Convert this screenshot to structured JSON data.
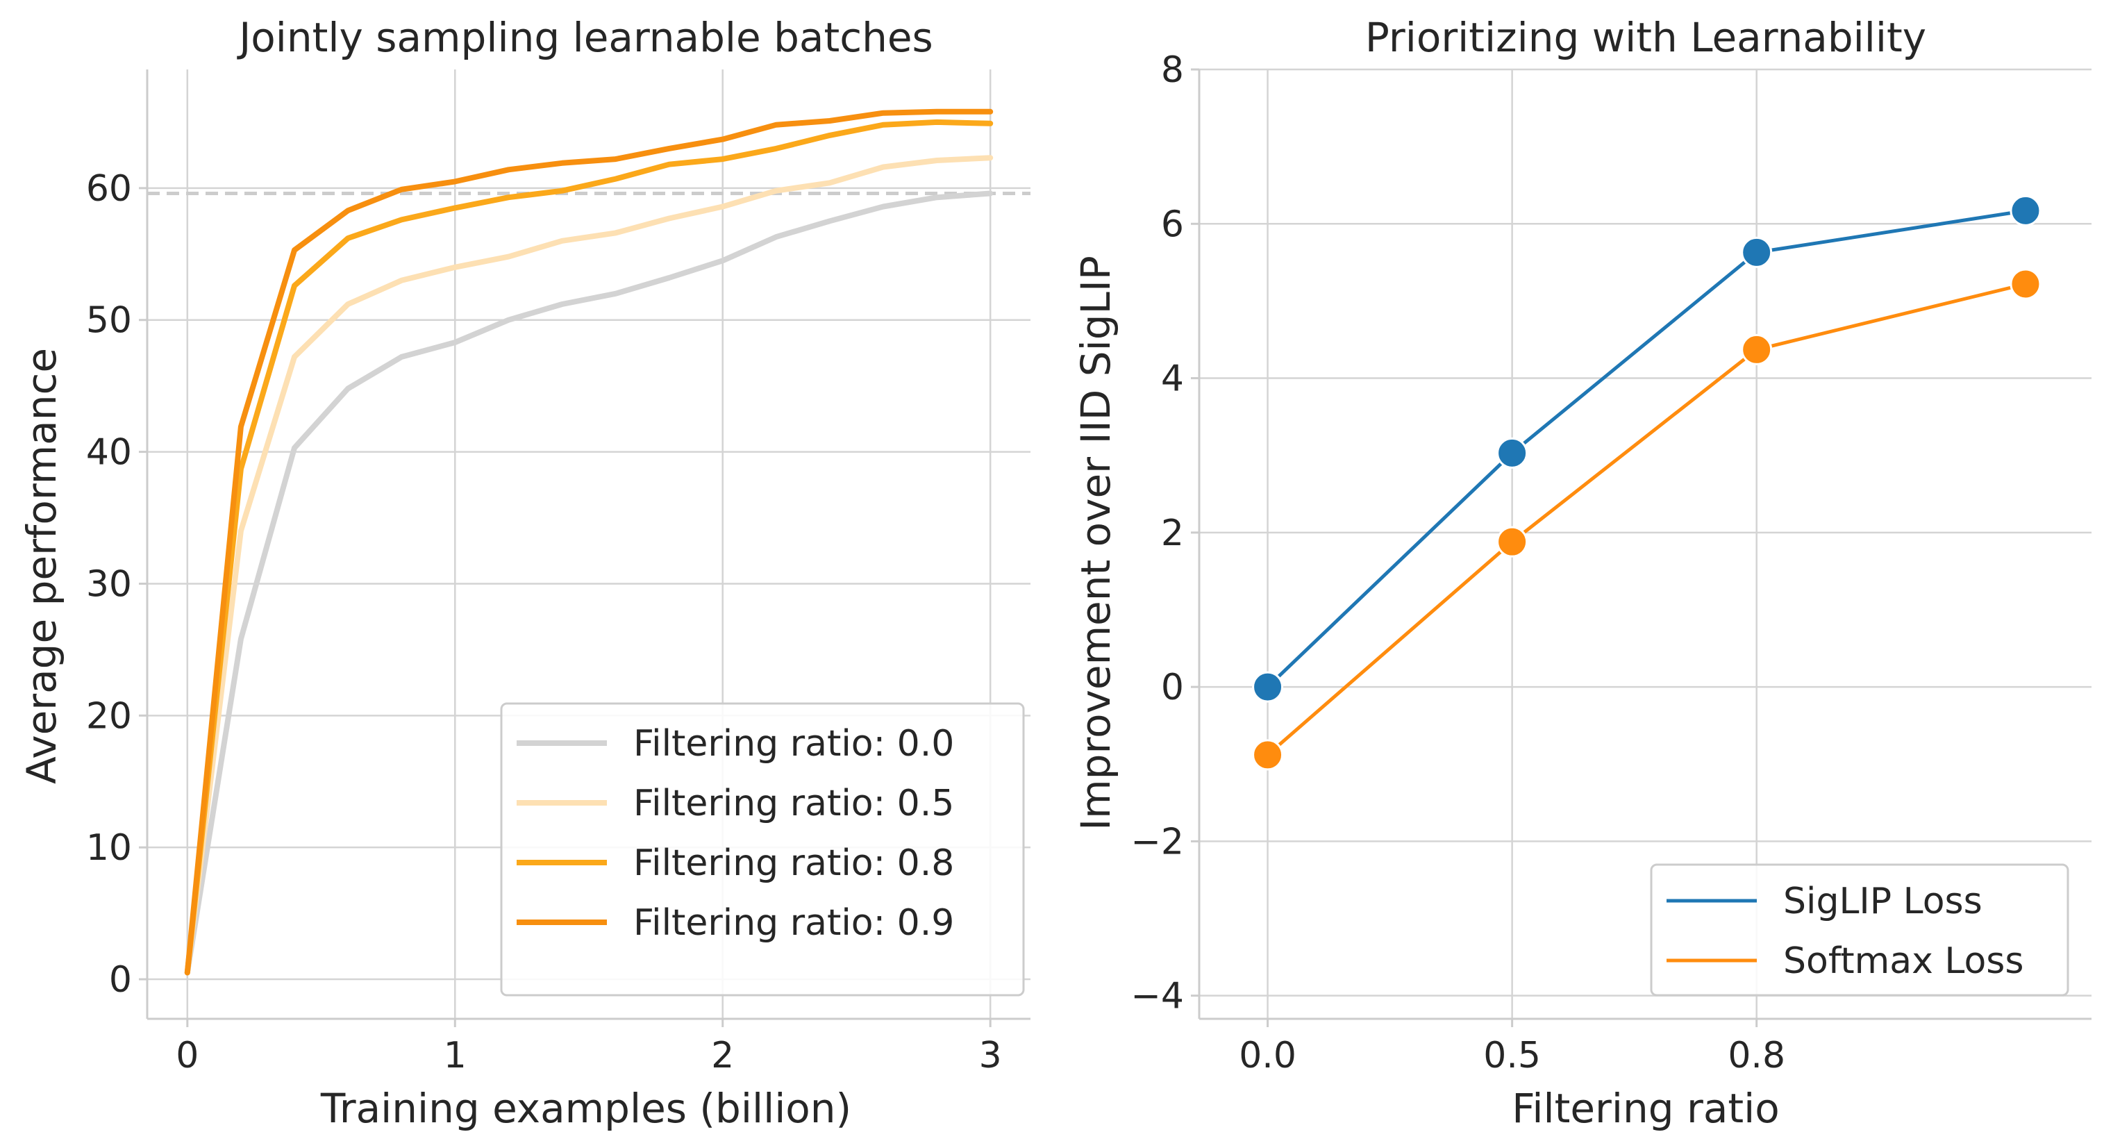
{
  "chart_data": [
    {
      "type": "line",
      "title": "Jointly sampling learnable batches",
      "xlabel": "Training examples (billion)",
      "ylabel": "Average performance",
      "xlim": [
        -0.15,
        3.15
      ],
      "ylim": [
        -3,
        69
      ],
      "xticks": [
        0,
        1,
        2,
        3
      ],
      "xtick_labels": [
        "0",
        "1",
        "2",
        "3"
      ],
      "yticks": [
        0,
        10,
        20,
        30,
        40,
        50,
        60
      ],
      "ytick_labels": [
        "0",
        "10",
        "20",
        "30",
        "40",
        "50",
        "60"
      ],
      "grid": true,
      "legend_position": "lower-right",
      "reference_line": {
        "y": 59.6,
        "style": "dashed",
        "color": "#cccccc"
      },
      "series": [
        {
          "name": "Filtering ratio: 0.0",
          "color": "#d3d3d3",
          "x": [
            0,
            0.2,
            0.4,
            0.6,
            0.8,
            1.0,
            1.2,
            1.4,
            1.6,
            1.8,
            2.0,
            2.2,
            2.4,
            2.6,
            2.8,
            3.0
          ],
          "y": [
            0.5,
            25.8,
            40.3,
            44.8,
            47.2,
            48.3,
            50.0,
            51.2,
            52.0,
            53.2,
            54.5,
            56.3,
            57.5,
            58.6,
            59.3,
            59.6
          ]
        },
        {
          "name": "Filtering ratio: 0.5",
          "color": "#fde0b3",
          "x": [
            0,
            0.2,
            0.4,
            0.6,
            0.8,
            1.0,
            1.2,
            1.4,
            1.6,
            1.8,
            2.0,
            2.2,
            2.4,
            2.6,
            2.8,
            3.0
          ],
          "y": [
            0.5,
            34.0,
            47.2,
            51.2,
            53.0,
            54.0,
            54.8,
            56.0,
            56.6,
            57.7,
            58.6,
            59.8,
            60.4,
            61.6,
            62.1,
            62.3
          ]
        },
        {
          "name": "Filtering ratio: 0.8",
          "color": "#fba81a",
          "x": [
            0,
            0.2,
            0.4,
            0.6,
            0.8,
            1.0,
            1.2,
            1.4,
            1.6,
            1.8,
            2.0,
            2.2,
            2.4,
            2.6,
            2.8,
            3.0
          ],
          "y": [
            0.5,
            38.7,
            52.6,
            56.2,
            57.6,
            58.5,
            59.3,
            59.8,
            60.7,
            61.8,
            62.2,
            63.0,
            64.0,
            64.8,
            65.0,
            64.9
          ]
        },
        {
          "name": "Filtering ratio: 0.9",
          "color": "#f78f0f",
          "x": [
            0,
            0.2,
            0.4,
            0.6,
            0.8,
            1.0,
            1.2,
            1.4,
            1.6,
            1.8,
            2.0,
            2.2,
            2.4,
            2.6,
            2.8,
            3.0
          ],
          "y": [
            0.5,
            41.9,
            55.3,
            58.3,
            59.9,
            60.5,
            61.4,
            61.9,
            62.2,
            63.0,
            63.7,
            64.8,
            65.1,
            65.7,
            65.8,
            65.8
          ]
        }
      ]
    },
    {
      "type": "line",
      "title": "Prioritizing with Learnability",
      "xlabel": "Filtering ratio",
      "ylabel": "Improvement over IID SigLIP",
      "xlim": [
        -0.28,
        3.37
      ],
      "ylim": [
        -4.3,
        8.0
      ],
      "xticks": [
        0,
        1,
        2
      ],
      "xtick_labels": [
        "0.0",
        "0.5",
        "0.8"
      ],
      "yticks": [
        -4,
        -2,
        0,
        2,
        4,
        6,
        8
      ],
      "ytick_labels": [
        "−4",
        "−2",
        "0",
        "2",
        "4",
        "6",
        "8"
      ],
      "grid": true,
      "legend_position": "lower-right",
      "markers": "circle",
      "series": [
        {
          "name": "SigLIP Loss",
          "color": "#1f77b4",
          "x": [
            0,
            1,
            2,
            3.1
          ],
          "y": [
            0.0,
            3.03,
            5.63,
            6.17
          ]
        },
        {
          "name": "Softmax Loss",
          "color": "#ff8c0e",
          "x": [
            0,
            1,
            2,
            3.1
          ],
          "y": [
            -0.88,
            1.88,
            4.37,
            5.22
          ]
        }
      ]
    }
  ]
}
